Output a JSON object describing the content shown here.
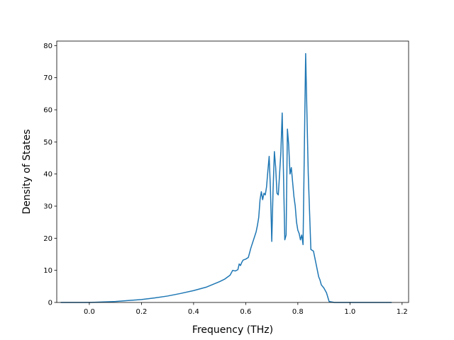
{
  "chart_data": {
    "type": "line",
    "title": "",
    "xlabel": "Frequency (THz)",
    "ylabel": "Density of States",
    "xlim": [
      -0.125,
      1.225
    ],
    "ylim": [
      0,
      81.4
    ],
    "x_ticks": [
      0.0,
      0.2,
      0.4,
      0.6,
      0.8,
      1.0,
      1.2
    ],
    "x_tick_labels": [
      "0.0",
      "0.2",
      "0.4",
      "0.6",
      "0.8",
      "1.0",
      "1.2"
    ],
    "y_ticks": [
      0,
      10,
      20,
      30,
      40,
      50,
      60,
      70,
      80
    ],
    "y_tick_labels": [
      "0",
      "10",
      "20",
      "30",
      "40",
      "50",
      "60",
      "70",
      "80"
    ],
    "grid": false,
    "legend": "none",
    "line_color": "#1f77b4",
    "series": [
      {
        "x": [
          -0.11,
          0.0,
          0.1,
          0.2,
          0.25,
          0.3,
          0.35,
          0.4,
          0.45,
          0.5,
          0.52,
          0.54,
          0.55,
          0.56,
          0.57,
          0.575,
          0.58,
          0.585,
          0.59,
          0.6,
          0.61,
          0.62,
          0.63,
          0.64,
          0.645,
          0.65,
          0.655,
          0.66,
          0.665,
          0.67,
          0.675,
          0.68,
          0.685,
          0.69,
          0.695,
          0.7,
          0.705,
          0.71,
          0.715,
          0.72,
          0.725,
          0.73,
          0.735,
          0.74,
          0.745,
          0.75,
          0.755,
          0.76,
          0.765,
          0.77,
          0.775,
          0.78,
          0.785,
          0.79,
          0.795,
          0.8,
          0.805,
          0.81,
          0.815,
          0.82,
          0.83,
          0.84,
          0.85,
          0.86,
          0.865,
          0.87,
          0.875,
          0.88,
          0.885,
          0.89,
          0.9,
          0.91,
          0.92,
          0.94,
          0.96,
          0.98,
          1.0,
          1.02,
          1.03,
          1.04,
          1.045,
          1.05,
          1.1,
          1.16
        ],
        "y": [
          0,
          0,
          0.3,
          0.9,
          1.4,
          2.0,
          2.8,
          3.7,
          4.8,
          6.5,
          7.3,
          8.5,
          10.0,
          9.8,
          10.2,
          12.0,
          11.5,
          12.5,
          13.2,
          13.5,
          14.0,
          17.0,
          19.5,
          22.0,
          24.0,
          26.5,
          32.0,
          34.5,
          32.0,
          34.0,
          33.5,
          36.0,
          41.0,
          45.5,
          35.0,
          19.0,
          35.0,
          47.0,
          42.0,
          34.0,
          33.5,
          40.0,
          47.0,
          59.0,
          40.0,
          19.5,
          21.0,
          54.0,
          49.0,
          40.0,
          42.0,
          37.5,
          33.0,
          30.0,
          25.0,
          22.5,
          21.5,
          19.5,
          21.0,
          18.0,
          77.5,
          40.0,
          16.5,
          16.0,
          14.0,
          12.0,
          10.0,
          8.0,
          7.0,
          5.5,
          4.5,
          3.0,
          0.3,
          0,
          0,
          0,
          0,
          0,
          0,
          0,
          0,
          0,
          0,
          0
        ]
      }
    ]
  }
}
